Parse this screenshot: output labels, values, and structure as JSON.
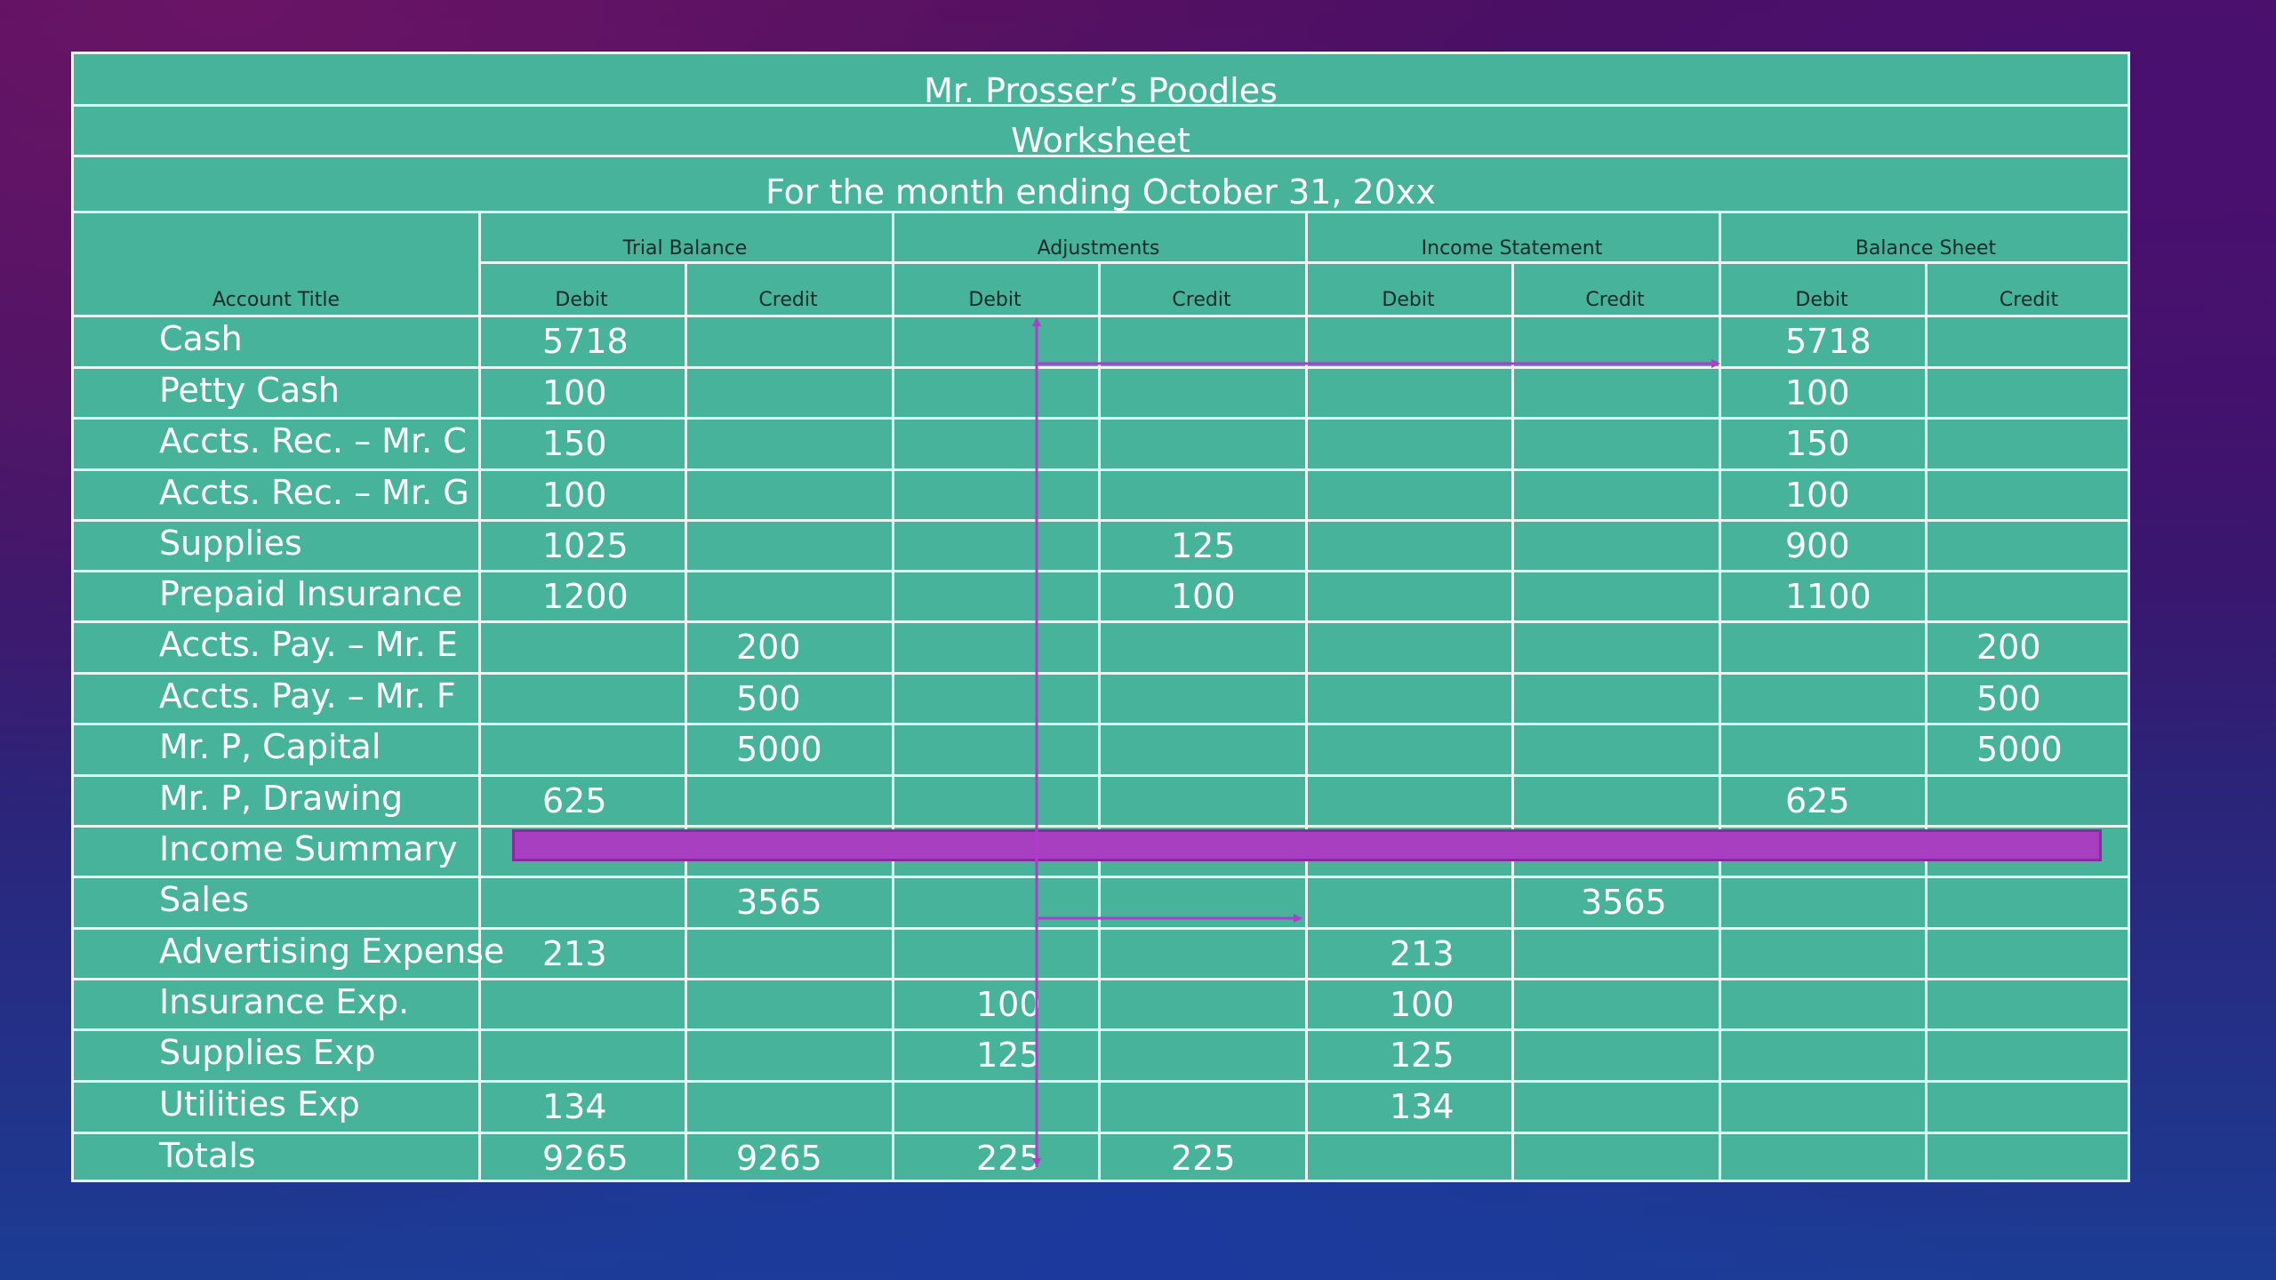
{
  "worksheet": {
    "company": "Mr. Prosser’s Poodles",
    "doc_type": "Worksheet",
    "period": "For the month ending October 31, 20xx",
    "headers": {
      "account_title": "Account Title",
      "groups": [
        "Trial Balance",
        "Adjustments",
        "Income Statement",
        "Balance Sheet"
      ],
      "sub": [
        "Debit",
        "Credit",
        "Debit",
        "Credit",
        "Debit",
        "Credit",
        "Debit",
        "Credit"
      ]
    },
    "rows": [
      {
        "account": "Cash",
        "tb_debit": "5718",
        "tb_credit": "",
        "adj_debit": "",
        "adj_credit": "",
        "is_debit": "",
        "is_credit": "",
        "bs_debit": "5718",
        "bs_credit": ""
      },
      {
        "account": "Petty Cash",
        "tb_debit": "100",
        "tb_credit": "",
        "adj_debit": "",
        "adj_credit": "",
        "is_debit": "",
        "is_credit": "",
        "bs_debit": "100",
        "bs_credit": ""
      },
      {
        "account": "Accts. Rec. – Mr. C",
        "tb_debit": "150",
        "tb_credit": "",
        "adj_debit": "",
        "adj_credit": "",
        "is_debit": "",
        "is_credit": "",
        "bs_debit": "150",
        "bs_credit": ""
      },
      {
        "account": "Accts. Rec. – Mr. G",
        "tb_debit": "100",
        "tb_credit": "",
        "adj_debit": "",
        "adj_credit": "",
        "is_debit": "",
        "is_credit": "",
        "bs_debit": "100",
        "bs_credit": ""
      },
      {
        "account": "Supplies",
        "tb_debit": "1025",
        "tb_credit": "",
        "adj_debit": "",
        "adj_credit": "125",
        "is_debit": "",
        "is_credit": "",
        "bs_debit": "900",
        "bs_credit": ""
      },
      {
        "account": "Prepaid Insurance",
        "tb_debit": "1200",
        "tb_credit": "",
        "adj_debit": "",
        "adj_credit": "100",
        "is_debit": "",
        "is_credit": "",
        "bs_debit": "1100",
        "bs_credit": ""
      },
      {
        "account": "Accts. Pay. – Mr. E",
        "tb_debit": "",
        "tb_credit": "200",
        "adj_debit": "",
        "adj_credit": "",
        "is_debit": "",
        "is_credit": "",
        "bs_debit": "",
        "bs_credit": "200"
      },
      {
        "account": "Accts. Pay. – Mr. F",
        "tb_debit": "",
        "tb_credit": "500",
        "adj_debit": "",
        "adj_credit": "",
        "is_debit": "",
        "is_credit": "",
        "bs_debit": "",
        "bs_credit": "500"
      },
      {
        "account": "Mr. P, Capital",
        "tb_debit": "",
        "tb_credit": "5000",
        "adj_debit": "",
        "adj_credit": "",
        "is_debit": "",
        "is_credit": "",
        "bs_debit": "",
        "bs_credit": "5000"
      },
      {
        "account": "Mr. P, Drawing",
        "tb_debit": "625",
        "tb_credit": "",
        "adj_debit": "",
        "adj_credit": "",
        "is_debit": "",
        "is_credit": "",
        "bs_debit": "625",
        "bs_credit": ""
      },
      {
        "account": "Income Summary",
        "tb_debit": "",
        "tb_credit": "",
        "adj_debit": "",
        "adj_credit": "",
        "is_debit": "",
        "is_credit": "",
        "bs_debit": "",
        "bs_credit": ""
      },
      {
        "account": "Sales",
        "tb_debit": "",
        "tb_credit": "3565",
        "adj_debit": "",
        "adj_credit": "",
        "is_debit": "",
        "is_credit": "3565",
        "bs_debit": "",
        "bs_credit": ""
      },
      {
        "account": "Advertising Expense",
        "tb_debit": "213",
        "tb_credit": "",
        "adj_debit": "",
        "adj_credit": "",
        "is_debit": "213",
        "is_credit": "",
        "bs_debit": "",
        "bs_credit": ""
      },
      {
        "account": "Insurance Exp.",
        "tb_debit": "",
        "tb_credit": "",
        "adj_debit": "100",
        "adj_credit": "",
        "is_debit": "100",
        "is_credit": "",
        "bs_debit": "",
        "bs_credit": ""
      },
      {
        "account": "Supplies  Exp",
        "tb_debit": "",
        "tb_credit": "",
        "adj_debit": "125",
        "adj_credit": "",
        "is_debit": "125",
        "is_credit": "",
        "bs_debit": "",
        "bs_credit": ""
      },
      {
        "account": "Utilities Exp",
        "tb_debit": "134",
        "tb_credit": "",
        "adj_debit": "",
        "adj_credit": "",
        "is_debit": "134",
        "is_credit": "",
        "bs_debit": "",
        "bs_credit": ""
      },
      {
        "account": "Totals",
        "tb_debit": "9265",
        "tb_credit": "9265",
        "adj_debit": "225",
        "adj_credit": "225",
        "is_debit": "",
        "is_credit": "",
        "bs_debit": "",
        "bs_credit": ""
      }
    ]
  },
  "colors": {
    "table_fill": "#47b39a",
    "grid_line": "#e9f5f1",
    "highlight_bar": "#a83fc0",
    "annotation_arrow": "#b23ad0"
  }
}
